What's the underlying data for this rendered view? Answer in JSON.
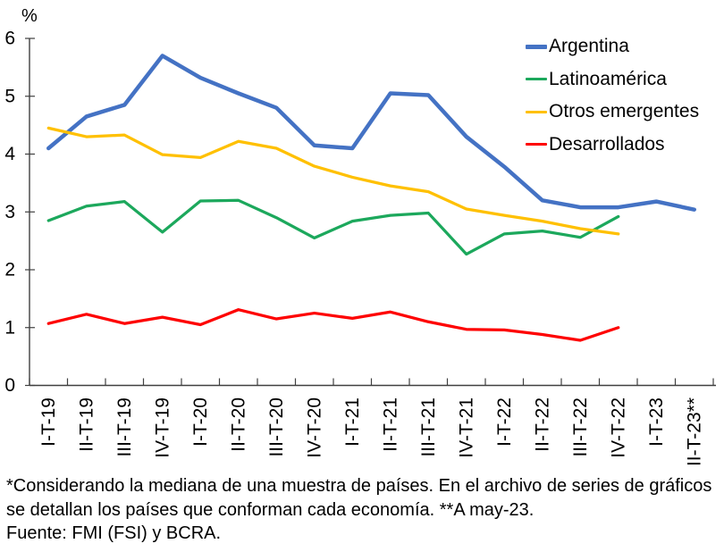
{
  "chart_data": {
    "type": "line",
    "unit": "%",
    "title": "",
    "xlabel": "",
    "ylabel": "%",
    "ylim": [
      0,
      6
    ],
    "yticks": [
      0,
      1,
      2,
      3,
      4,
      5,
      6
    ],
    "grid": false,
    "legend_position": "top-right",
    "categories": [
      "I-T-19",
      "II-T-19",
      "III-T-19",
      "IV-T-19",
      "I-T-20",
      "II-T-20",
      "III-T-20",
      "IV-T-20",
      "I-T-21",
      "II-T-21",
      "III-T-21",
      "IV-T-21",
      "I-T-22",
      "II-T-22",
      "III-T-22",
      "IV-T-22",
      "I-T-23",
      "II-T-23**"
    ],
    "series": [
      {
        "name": "Argentina",
        "color": "#4472C4",
        "stroke_width": 4.5,
        "values": [
          4.1,
          4.65,
          4.85,
          5.7,
          5.32,
          5.05,
          4.8,
          4.15,
          4.1,
          5.05,
          5.02,
          4.3,
          3.78,
          3.2,
          3.08,
          3.08,
          3.18,
          3.04
        ]
      },
      {
        "name": "Latinoamérica",
        "color": "#1CA85C",
        "stroke_width": 3.25,
        "values": [
          2.85,
          3.1,
          3.18,
          2.65,
          3.19,
          3.2,
          2.9,
          2.55,
          2.84,
          2.94,
          2.98,
          2.27,
          2.62,
          2.67,
          2.56,
          2.92
        ]
      },
      {
        "name": "Otros emergentes",
        "color": "#FFC000",
        "stroke_width": 3.25,
        "values": [
          4.45,
          4.3,
          4.33,
          3.99,
          3.94,
          4.22,
          4.1,
          3.79,
          3.6,
          3.45,
          3.35,
          3.05,
          2.94,
          2.84,
          2.71,
          2.62
        ]
      },
      {
        "name": "Desarrollados",
        "color": "#FE0000",
        "stroke_width": 3.25,
        "values": [
          1.07,
          1.23,
          1.07,
          1.18,
          1.05,
          1.31,
          1.15,
          1.25,
          1.16,
          1.27,
          1.1,
          0.97,
          0.96,
          0.88,
          0.78,
          1.0
        ]
      }
    ]
  },
  "footnote": {
    "note": "*Considerando la mediana de una muestra de países. En el archivo de series de gráficos se detallan los países que conforman cada economía. **A may-23.",
    "source": "Fuente: FMI (FSI) y BCRA."
  }
}
